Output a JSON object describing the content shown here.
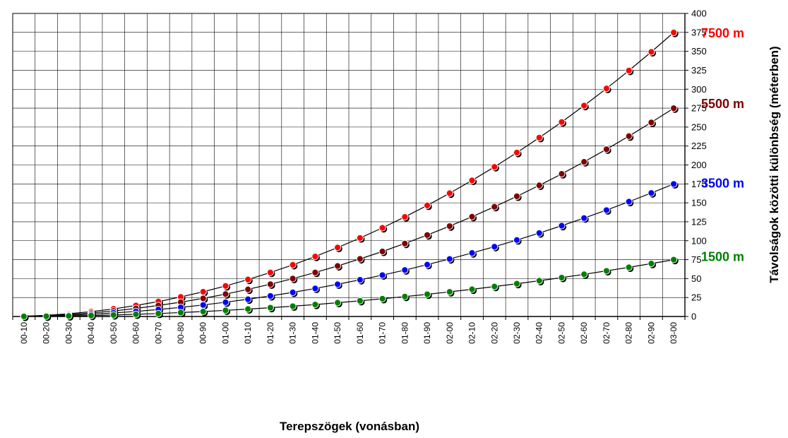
{
  "chart_data": {
    "type": "line",
    "xlabel": "Terepszögek (vonásban)",
    "ylabel": "Távolságok közötti különbség (méterben)",
    "ylim": [
      0,
      400
    ],
    "y_ticks": [
      "0",
      "25",
      "50",
      "75",
      "100",
      "125",
      "150",
      "175",
      "200",
      "225",
      "250",
      "275",
      "300",
      "325",
      "350",
      "375",
      "400"
    ],
    "categories": [
      "00-10",
      "00-20",
      "00-30",
      "00-40",
      "00-50",
      "00-60",
      "00-70",
      "00-80",
      "00-90",
      "01-00",
      "01-10",
      "01-20",
      "01-30",
      "01-40",
      "01-50",
      "01-60",
      "01-70",
      "01-80",
      "01-90",
      "02-00",
      "02-10",
      "02-20",
      "02-30",
      "02-40",
      "02-50",
      "02-60",
      "02-70",
      "02-80",
      "02-90",
      "03-00"
    ],
    "grid": true,
    "legend": "right-labels",
    "series": [
      {
        "name": "7500 m",
        "color": "#ff0000",
        "values": [
          0.4,
          1.6,
          3.6,
          6.4,
          10,
          14.5,
          19.7,
          25.8,
          32.6,
          40.3,
          48.8,
          58.1,
          68.2,
          79.2,
          91,
          103.6,
          117,
          131.4,
          146.6,
          162.7,
          179.6,
          197.5,
          216.3,
          236,
          256.7,
          278.3,
          300.9,
          324.6,
          349.2,
          374.8
        ]
      },
      {
        "name": "5500 m",
        "color": "#800000",
        "values": [
          0.3,
          1.2,
          2.6,
          4.7,
          7.3,
          10.6,
          14.5,
          18.9,
          23.9,
          29.6,
          35.8,
          42.6,
          50,
          58.1,
          66.7,
          76,
          85.8,
          96.3,
          107.5,
          119.3,
          131.7,
          144.8,
          158.6,
          173.1,
          188.2,
          204.1,
          220.7,
          238,
          256.1,
          274.9
        ]
      },
      {
        "name": "3500 m",
        "color": "#0000ff",
        "values": [
          0.2,
          0.7,
          1.7,
          3,
          4.7,
          6.7,
          9.2,
          12,
          15.2,
          18.8,
          22.8,
          27.1,
          31.8,
          37,
          42.5,
          48.4,
          54.6,
          61.3,
          68.4,
          75.9,
          83.8,
          92.1,
          100.9,
          110.1,
          119.8,
          129.9,
          140.4,
          151.5,
          163,
          174.9
        ]
      },
      {
        "name": "1500 m",
        "color": "#008000",
        "values": [
          0.1,
          0.3,
          0.7,
          1.3,
          2,
          2.9,
          3.9,
          5.2,
          6.5,
          8.1,
          9.8,
          11.6,
          13.6,
          15.8,
          18.2,
          20.7,
          23.4,
          26.3,
          29.3,
          32.5,
          35.9,
          39.5,
          43.3,
          47.2,
          51.3,
          55.7,
          60.2,
          64.9,
          69.8,
          75
        ]
      }
    ]
  }
}
